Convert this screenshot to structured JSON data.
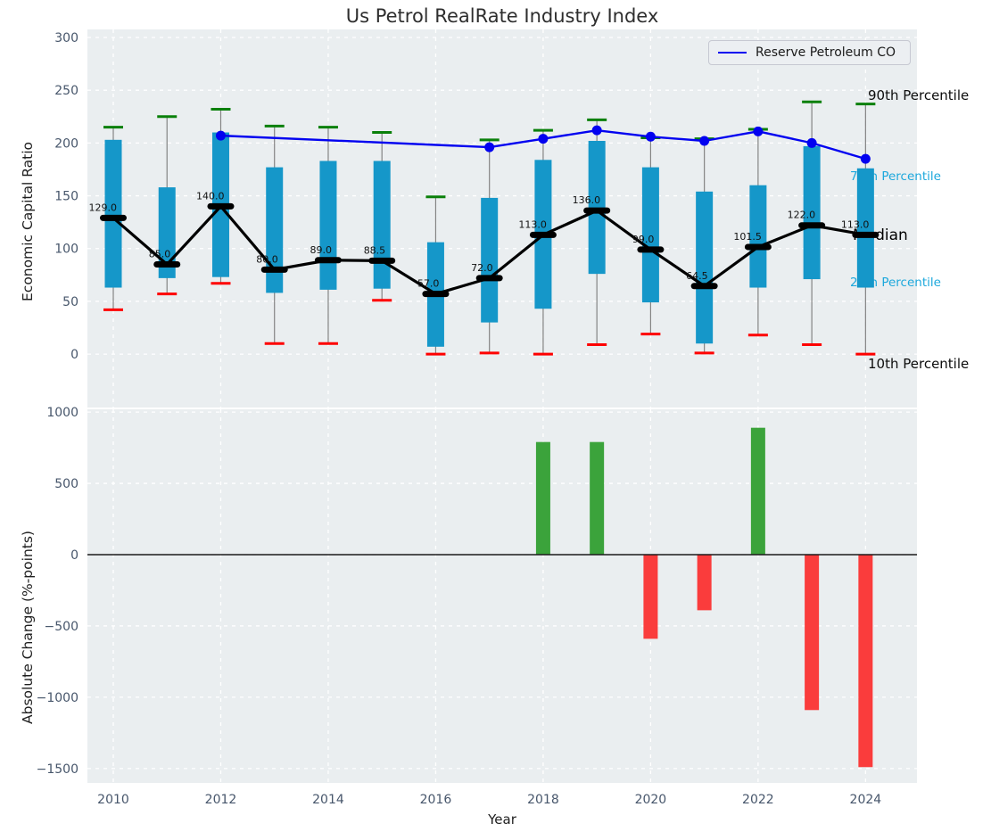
{
  "title": "Us Petrol RealRate Industry Index",
  "legend": {
    "series_label": "Reserve Petroleum CO"
  },
  "axes": {
    "top": {
      "ylabel": "Economic Capital Ratio",
      "yticks": [
        "0",
        "50",
        "100",
        "150",
        "200",
        "250",
        "300"
      ]
    },
    "bottom": {
      "ylabel": "Absolute Change (%-points)",
      "xlabel": "Year",
      "yticks": [
        "1000",
        "500",
        "0",
        "−500",
        "−1000",
        "−1500"
      ],
      "xticks": [
        "2010",
        "2012",
        "2014",
        "2016",
        "2018",
        "2020",
        "2022",
        "2024"
      ]
    }
  },
  "annotations": {
    "p90": "90th Percentile",
    "p75": "75th Percentile",
    "median": "Median",
    "p25": "25th Percentile",
    "p10": "10th Percentile"
  },
  "colors": {
    "plot_bg": "#eaeef0",
    "grid": "#ffffff",
    "box": "#1597c9",
    "whisker": "#848484",
    "p90_cap": "#0a800a",
    "p10_cap": "#fe0000",
    "median_marker": "#000000",
    "median_line": "#000000",
    "company_line": "#0202f0",
    "bar_positive": "#3ba33b",
    "bar_negative": "#fa3c3c",
    "tick_text": "#47566b",
    "percentile_text": "#1da8dc",
    "annotation_text": "#0d0d0d",
    "zero_line": "#1a1a1a"
  },
  "chart_data": [
    {
      "type": "percentile-band-timeseries",
      "title": "Us Petrol RealRate Industry Index",
      "ylabel": "Economic Capital Ratio",
      "ylim": [
        -50,
        307
      ],
      "grid": true,
      "legend_position": "upper right",
      "years": [
        2010,
        2011,
        2012,
        2013,
        2014,
        2015,
        2016,
        2017,
        2018,
        2019,
        2020,
        2021,
        2022,
        2023,
        2024
      ],
      "median": [
        129.0,
        85.0,
        140.0,
        80.0,
        89.0,
        88.5,
        57.0,
        72.0,
        113.0,
        136.0,
        99.0,
        64.5,
        101.5,
        122.0,
        113.0
      ],
      "p90": [
        215,
        225,
        232,
        216,
        215,
        210,
        149,
        203,
        212,
        222,
        205,
        204,
        213,
        239,
        237
      ],
      "p75": [
        203,
        158,
        210,
        177,
        183,
        183,
        106,
        148,
        184,
        202,
        177,
        154,
        160,
        197,
        176
      ],
      "p25": [
        63,
        72,
        73,
        58,
        61,
        62,
        7,
        30,
        43,
        76,
        49,
        10,
        63,
        71,
        63
      ],
      "p10": [
        42,
        57,
        67,
        10,
        10,
        51,
        0,
        1,
        0,
        9,
        19,
        1,
        18,
        9,
        0
      ],
      "series": [
        {
          "name": "Reserve Petroleum CO",
          "x": [
            2012,
            2017,
            2018,
            2019,
            2020,
            2021,
            2022,
            2023,
            2024
          ],
          "y": [
            207,
            196,
            204,
            212,
            206,
            202,
            211,
            200,
            185
          ]
        }
      ]
    },
    {
      "type": "bar",
      "ylabel": "Absolute Change (%-points)",
      "xlabel": "Year",
      "ylim": [
        -1600,
        1020
      ],
      "grid": true,
      "categories": [
        2018,
        2019,
        2020,
        2021,
        2022,
        2023,
        2024
      ],
      "values": [
        790,
        790,
        -590,
        -390,
        890,
        -1090,
        -1490
      ]
    }
  ]
}
